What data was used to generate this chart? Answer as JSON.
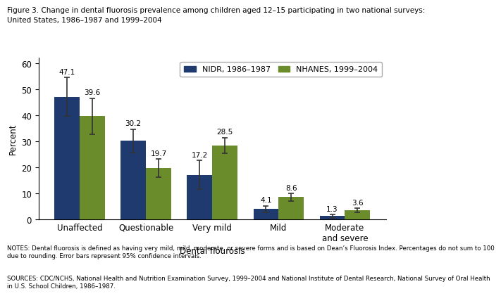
{
  "categories": [
    "Unaffected",
    "Questionable",
    "Very mild",
    "Mild",
    "Moderate\nand severe"
  ],
  "nidr_values": [
    47.1,
    30.2,
    17.2,
    4.1,
    1.3
  ],
  "nhanes_values": [
    39.6,
    19.7,
    28.5,
    8.6,
    3.6
  ],
  "nidr_errors": [
    7.5,
    4.5,
    5.5,
    1.2,
    0.6
  ],
  "nhanes_errors": [
    7.0,
    3.5,
    3.0,
    1.5,
    0.8
  ],
  "nidr_color": "#1F3A6E",
  "nhanes_color": "#6B8C2A",
  "bar_width": 0.38,
  "ylim": [
    0,
    62
  ],
  "yticks": [
    0,
    10,
    20,
    30,
    40,
    50,
    60
  ],
  "xlabel": "Dental flourosis",
  "ylabel": "Percent",
  "legend_labels": [
    "NIDR, 1986–1987",
    "NHANES, 1999–2004"
  ],
  "title_line1": "Figure 3. Change in dental fluorosis prevalence among children aged 12–15 participating in two national surveys:",
  "title_line2": "United States, 1986–1987 and 1999–2004",
  "notes": "NOTES: Dental fluorosis is defined as having very mild, mild, moderate, or severe forms and is based on Dean’s Fluorosis Index. Percentages do not sum to 100\ndue to rounding. Error bars represent 95% confidence intervals.",
  "sources": "SOURCES: CDC/NCHS, National Health and Nutrition Examination Survey, 1999–2004 and National Institute of Dental Research, National Survey of Oral Health\nin U.S. School Children, 1986–1987.",
  "error_color": "#333333",
  "label_fontsize": 7.5,
  "axis_fontsize": 8.5,
  "tick_fontsize": 8.5,
  "title_fontsize": 7.5,
  "note_fontsize": 6.2,
  "legend_fontsize": 8
}
